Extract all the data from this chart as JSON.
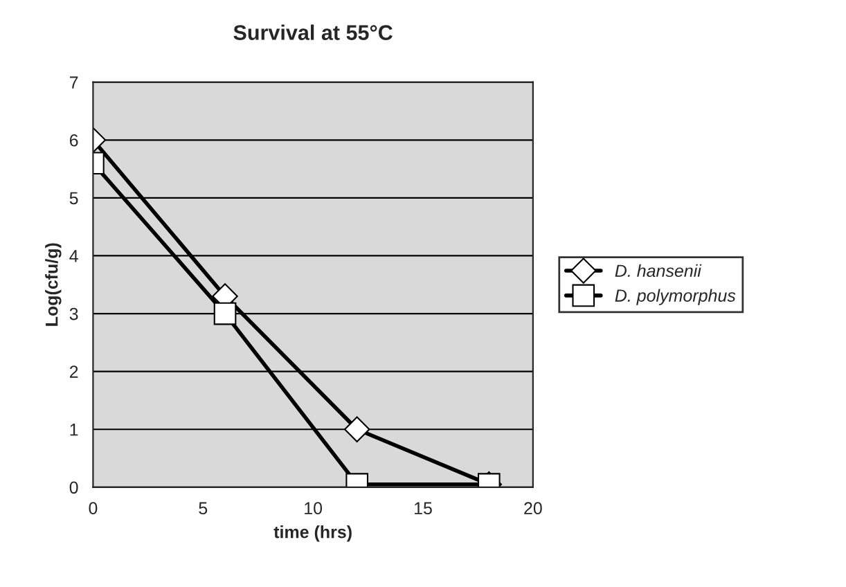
{
  "chart_data": {
    "type": "line",
    "title": "Survival at 55°C",
    "xlabel": "time (hrs)",
    "ylabel": "Log(cfu/g)",
    "x": [
      0,
      6,
      12,
      18
    ],
    "series": [
      {
        "name": "D. hansenii",
        "color": "#000000",
        "marker": "diamond",
        "values": [
          6.0,
          3.3,
          1.0,
          0.05
        ]
      },
      {
        "name": "D. polymorphus",
        "color": "#000000",
        "marker": "square",
        "values": [
          5.6,
          3.0,
          0.05,
          0.05
        ]
      }
    ],
    "xlim": [
      0,
      20
    ],
    "xticks": [
      0,
      5,
      10,
      15,
      20
    ],
    "ylim": [
      0,
      7
    ],
    "yticks": [
      0,
      1,
      2,
      3,
      4,
      5,
      6,
      7
    ],
    "grid": "y",
    "legend": "right",
    "line_style": "solid"
  }
}
